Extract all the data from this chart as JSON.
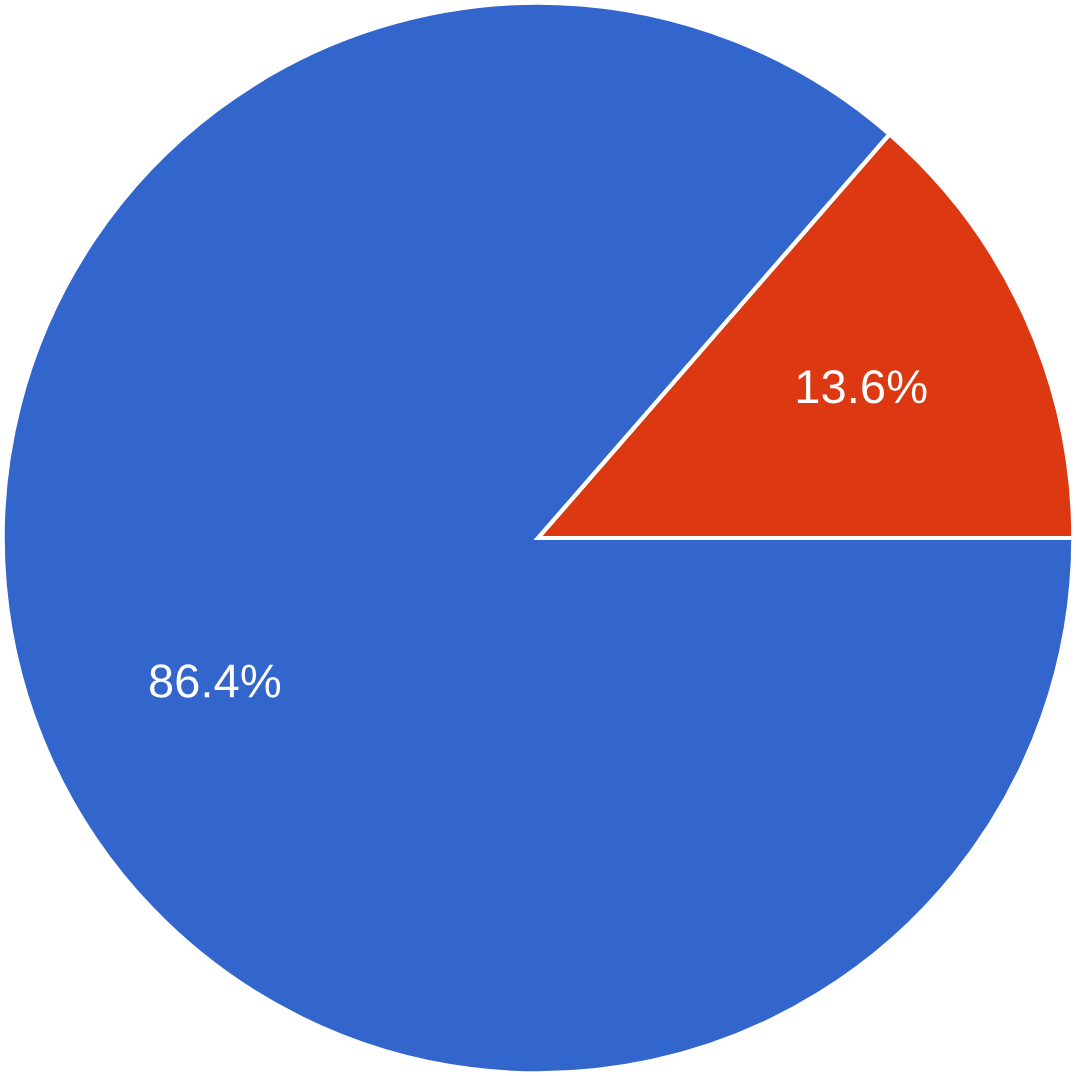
{
  "chart_data": {
    "type": "pie",
    "categories": [
      null,
      null
    ],
    "values": [
      13.6,
      86.4
    ],
    "colors": [
      "#dc3912",
      "#3366cc"
    ],
    "value_labels": [
      "13.6%",
      "86.4%"
    ]
  }
}
